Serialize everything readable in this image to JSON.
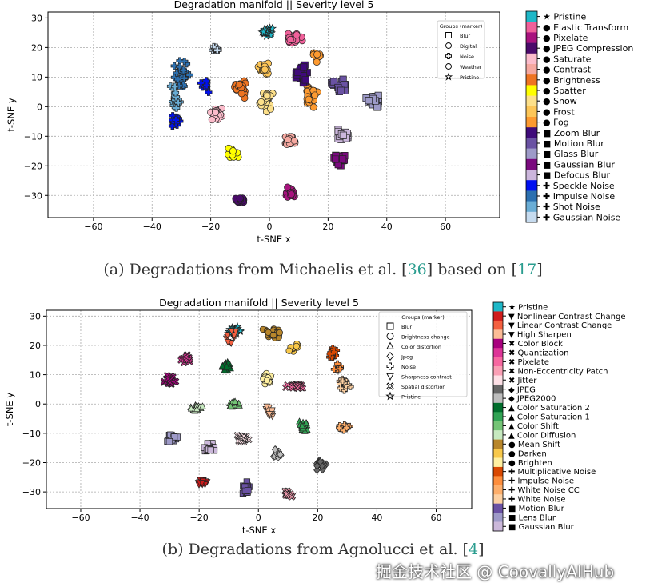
{
  "chart_data": [
    {
      "type": "scatter",
      "title": "Degradation manifold || Severity level 5",
      "xlabel": "t-SNE x",
      "ylabel": "t-SNE y",
      "xlim": [
        -75.5,
        78.5
      ],
      "ylim": [
        -37.5,
        32
      ],
      "xticks": [
        -60,
        -40,
        -20,
        0,
        20,
        40,
        60
      ],
      "yticks": [
        30,
        20,
        10,
        0,
        -10,
        -20,
        -30
      ],
      "grid": true,
      "legend": {
        "title": "Groups (marker)",
        "placement": "top-right",
        "entries": [
          {
            "label": "Blur",
            "marker": "square"
          },
          {
            "label": "Digital",
            "marker": "circle"
          },
          {
            "label": "Noise",
            "marker": "plus"
          },
          {
            "label": "Weather",
            "marker": "circle"
          },
          {
            "label": "Pristine",
            "marker": "star"
          }
        ]
      },
      "categories": [
        {
          "label": "Pristine",
          "marker": "star",
          "color": "#1fb8c8"
        },
        {
          "label": "Elastic Transform",
          "marker": "circle",
          "color": "#f0609a"
        },
        {
          "label": "Pixelate",
          "marker": "circle",
          "color": "#a8137e"
        },
        {
          "label": "JPEG Compression",
          "marker": "circle",
          "color": "#4a0a6a"
        },
        {
          "label": "Saturate",
          "marker": "circle",
          "color": "#fbbccb"
        },
        {
          "label": "Contrast",
          "marker": "circle",
          "color": "#f5a8a0"
        },
        {
          "label": "Brightness",
          "marker": "circle",
          "color": "#ee7422"
        },
        {
          "label": "Spatter",
          "marker": "circle",
          "color": "#ffff00"
        },
        {
          "label": "Snow",
          "marker": "circle",
          "color": "#fde08a"
        },
        {
          "label": "Frost",
          "marker": "circle",
          "color": "#fdc658"
        },
        {
          "label": "Fog",
          "marker": "circle",
          "color": "#fd9a30"
        },
        {
          "label": "Zoom Blur",
          "marker": "square",
          "color": "#3f0a7a"
        },
        {
          "label": "Motion Blur",
          "marker": "square",
          "color": "#6a52a3"
        },
        {
          "label": "Glass Blur",
          "marker": "square",
          "color": "#9d9ac8"
        },
        {
          "label": "Gaussian Blur",
          "marker": "square",
          "color": "#7a0a7e"
        },
        {
          "label": "Defocus Blur",
          "marker": "square",
          "color": "#cbb6dc"
        },
        {
          "label": "Speckle Noise",
          "marker": "plus",
          "color": "#0010f0"
        },
        {
          "label": "Impulse Noise",
          "marker": "plus",
          "color": "#2c70b0"
        },
        {
          "label": "Shot Noise",
          "marker": "plus",
          "color": "#6aadd5"
        },
        {
          "label": "Gaussian Noise",
          "marker": "plus",
          "color": "#c6dbef"
        }
      ],
      "clusters": [
        {
          "cat": 16,
          "x": -32,
          "y": -5,
          "sx": 3,
          "sy": 2.5,
          "n": 30
        },
        {
          "cat": 16,
          "x": -22,
          "y": 7,
          "sx": 2,
          "sy": 3,
          "n": 14
        },
        {
          "cat": 17,
          "x": -30,
          "y": 11,
          "sx": 3,
          "sy": 6,
          "n": 30
        },
        {
          "cat": 18,
          "x": -32,
          "y": 3,
          "sx": 2.5,
          "sy": 6,
          "n": 18
        },
        {
          "cat": 19,
          "x": -18,
          "y": 19,
          "sx": 2,
          "sy": 1.5,
          "n": 12
        },
        {
          "cat": 0,
          "x": -1,
          "y": 25.5,
          "sx": 2.5,
          "sy": 2,
          "n": 24
        },
        {
          "cat": 1,
          "x": 8,
          "y": 23.5,
          "sx": 4,
          "sy": 2,
          "n": 22
        },
        {
          "cat": 4,
          "x": -18,
          "y": -2.5,
          "sx": 2.5,
          "sy": 3,
          "n": 26
        },
        {
          "cat": 6,
          "x": -10,
          "y": 6.5,
          "sx": 3,
          "sy": 4,
          "n": 28
        },
        {
          "cat": 10,
          "x": 14,
          "y": 4,
          "sx": 3,
          "sy": 5,
          "n": 26
        },
        {
          "cat": 10,
          "x": 16,
          "y": 17,
          "sx": 2,
          "sy": 3,
          "n": 10
        },
        {
          "cat": 8,
          "x": -1,
          "y": 2,
          "sx": 2.5,
          "sy": 5,
          "n": 28
        },
        {
          "cat": 9,
          "x": -2,
          "y": 13,
          "sx": 2.5,
          "sy": 4,
          "n": 18
        },
        {
          "cat": 11,
          "x": 11,
          "y": 11,
          "sx": 3,
          "sy": 4,
          "n": 26
        },
        {
          "cat": 12,
          "x": 24.5,
          "y": 7,
          "sx": 4,
          "sy": 3,
          "n": 24
        },
        {
          "cat": 13,
          "x": 35.5,
          "y": 2,
          "sx": 3,
          "sy": 2.5,
          "n": 26
        },
        {
          "cat": 15,
          "x": 25,
          "y": -10,
          "sx": 3,
          "sy": 2.5,
          "n": 24
        },
        {
          "cat": 14,
          "x": 23.5,
          "y": -18,
          "sx": 3,
          "sy": 3,
          "n": 26
        },
        {
          "cat": 5,
          "x": 7,
          "y": -11.7,
          "sx": 3,
          "sy": 2,
          "n": 26
        },
        {
          "cat": 7,
          "x": -12.8,
          "y": -16,
          "sx": 2.5,
          "sy": 2.5,
          "n": 22
        },
        {
          "cat": 3,
          "x": -10,
          "y": -31.5,
          "sx": 2.5,
          "sy": 1.5,
          "n": 22
        },
        {
          "cat": 2,
          "x": 7,
          "y": -29,
          "sx": 2.5,
          "sy": 2.5,
          "n": 22
        }
      ]
    },
    {
      "type": "scatter",
      "title": "Degradation manifold || Severity level 5",
      "xlabel": "t-SNE x",
      "ylabel": "t-SNE y",
      "xlim": [
        -71.6,
        72
      ],
      "ylim": [
        -35.7,
        32
      ],
      "xticks": [
        -60,
        -40,
        -20,
        0,
        20,
        40,
        60
      ],
      "yticks": [
        30,
        20,
        10,
        0,
        -10,
        -20,
        -30
      ],
      "grid": true,
      "legend": {
        "title": "Groups (marker)",
        "placement": "top-right",
        "entries": [
          {
            "label": "Blur",
            "marker": "square"
          },
          {
            "label": "Brightness change",
            "marker": "circle"
          },
          {
            "label": "Color distortion",
            "marker": "tri"
          },
          {
            "label": "Jpeg",
            "marker": "diamond"
          },
          {
            "label": "Noise",
            "marker": "plus"
          },
          {
            "label": "Sharpness contrast",
            "marker": "itri"
          },
          {
            "label": "Spatial distortion",
            "marker": "x"
          },
          {
            "label": "Pristine",
            "marker": "star"
          }
        ]
      },
      "categories": [
        {
          "label": "Pristine",
          "marker": "star",
          "color": "#1fb8c8"
        },
        {
          "label": "Nonlinear Contrast Change",
          "marker": "itri",
          "color": "#d01c1c"
        },
        {
          "label": "Linear Contrast Change",
          "marker": "itri",
          "color": "#f46040"
        },
        {
          "label": "High Sharpen",
          "marker": "itri",
          "color": "#fcbc96"
        },
        {
          "label": "Color Block",
          "marker": "x",
          "color": "#a8007e"
        },
        {
          "label": "Quantization",
          "marker": "x",
          "color": "#dd3497"
        },
        {
          "label": "Pixelate",
          "marker": "x",
          "color": "#f768a1"
        },
        {
          "label": "Non-Eccentricity Patch",
          "marker": "x",
          "color": "#fa9fb5"
        },
        {
          "label": "Jitter",
          "marker": "x",
          "color": "#fde0e6"
        },
        {
          "label": "JPEG",
          "marker": "diamond",
          "color": "#666666"
        },
        {
          "label": "JPEG2000",
          "marker": "diamond",
          "color": "#bdbdbd"
        },
        {
          "label": "Color Saturation 2",
          "marker": "tri",
          "color": "#006d2c"
        },
        {
          "label": "Color Saturation 1",
          "marker": "tri",
          "color": "#31a354"
        },
        {
          "label": "Color Shift",
          "marker": "tri",
          "color": "#74c476"
        },
        {
          "label": "Color Diffusion",
          "marker": "tri",
          "color": "#c7e9c0"
        },
        {
          "label": "Mean Shift",
          "marker": "circle",
          "color": "#b8862b"
        },
        {
          "label": "Darken",
          "marker": "circle",
          "color": "#f8c84a"
        },
        {
          "label": "Brighten",
          "marker": "circle",
          "color": "#fff0a0"
        },
        {
          "label": "Multiplicative Noise",
          "marker": "plus",
          "color": "#d94801"
        },
        {
          "label": "Impulse Noise",
          "marker": "plus",
          "color": "#fd8d3c"
        },
        {
          "label": "White Noise CC",
          "marker": "plus",
          "color": "#fdae6b"
        },
        {
          "label": "White Noise",
          "marker": "plus",
          "color": "#fdd0a2"
        },
        {
          "label": "Motion Blur",
          "marker": "square",
          "color": "#6a51a3"
        },
        {
          "label": "Lens Blur",
          "marker": "square",
          "color": "#9e9ac8"
        },
        {
          "label": "Gaussian Blur",
          "marker": "square",
          "color": "#cbb8da"
        }
      ],
      "clusters": [
        {
          "cat": 0,
          "x": -8,
          "y": 25,
          "sx": 3,
          "sy": 2.5,
          "n": 30
        },
        {
          "cat": 2,
          "x": -9,
          "y": 22,
          "sx": 4,
          "sy": 4,
          "n": 10
        },
        {
          "cat": 15,
          "x": 5,
          "y": 24,
          "sx": 4,
          "sy": 2.5,
          "n": 28
        },
        {
          "cat": 16,
          "x": 12,
          "y": 19,
          "sx": 2,
          "sy": 2,
          "n": 12
        },
        {
          "cat": 18,
          "x": 25,
          "y": 17,
          "sx": 2,
          "sy": 3,
          "n": 18
        },
        {
          "cat": 19,
          "x": 27,
          "y": 12,
          "sx": 2,
          "sy": 2,
          "n": 14
        },
        {
          "cat": 21,
          "x": 29,
          "y": 7,
          "sx": 2.5,
          "sy": 3,
          "n": 22
        },
        {
          "cat": 20,
          "x": 29,
          "y": -8,
          "sx": 2.5,
          "sy": 1.2,
          "n": 18
        },
        {
          "cat": 5,
          "x": -24.6,
          "y": 15.5,
          "sx": 2,
          "sy": 2,
          "n": 22
        },
        {
          "cat": 4,
          "x": -30,
          "y": 8.2,
          "sx": 2.5,
          "sy": 2.5,
          "n": 26
        },
        {
          "cat": 11,
          "x": -10.8,
          "y": 13,
          "sx": 2,
          "sy": 2.5,
          "n": 22
        },
        {
          "cat": 17,
          "x": 2.7,
          "y": 9,
          "sx": 2.5,
          "sy": 2.5,
          "n": 22
        },
        {
          "cat": 6,
          "x": 12.7,
          "y": 6,
          "sx": 4,
          "sy": 1.5,
          "n": 26
        },
        {
          "cat": 14,
          "x": -21,
          "y": -1.4,
          "sx": 2.5,
          "sy": 1.5,
          "n": 24
        },
        {
          "cat": 13,
          "x": -8.4,
          "y": 0,
          "sx": 2.5,
          "sy": 1.8,
          "n": 24
        },
        {
          "cat": 3,
          "x": 3.8,
          "y": -2.7,
          "sx": 2,
          "sy": 2.5,
          "n": 20
        },
        {
          "cat": 12,
          "x": 15.4,
          "y": -7.6,
          "sx": 1.8,
          "sy": 2.5,
          "n": 22
        },
        {
          "cat": 23,
          "x": -29,
          "y": -11.7,
          "sx": 2.5,
          "sy": 2,
          "n": 22
        },
        {
          "cat": 24,
          "x": -16.5,
          "y": -15,
          "sx": 2.5,
          "sy": 2,
          "n": 22
        },
        {
          "cat": 8,
          "x": -5,
          "y": -11.7,
          "sx": 3,
          "sy": 2,
          "n": 24
        },
        {
          "cat": 10,
          "x": 6.5,
          "y": -17,
          "sx": 2,
          "sy": 2.5,
          "n": 20
        },
        {
          "cat": 9,
          "x": 20.8,
          "y": -21,
          "sx": 2.5,
          "sy": 2,
          "n": 20
        },
        {
          "cat": 1,
          "x": -19,
          "y": -26.7,
          "sx": 2,
          "sy": 1.5,
          "n": 20
        },
        {
          "cat": 22,
          "x": -4,
          "y": -28.6,
          "sx": 1.5,
          "sy": 2.5,
          "n": 20
        },
        {
          "cat": 7,
          "x": 10,
          "y": -30.8,
          "sx": 2.5,
          "sy": 1.5,
          "n": 20
        }
      ]
    }
  ],
  "captions": [
    {
      "prefix": "(a) Degradations from Michaelis et al. [",
      "cite1": "36",
      "middle": "] based on [",
      "cite2": "17",
      "suffix": "]"
    },
    {
      "prefix": "(b) Degradations from Agnolucci et al. [",
      "cite1": "4",
      "middle": "",
      "cite2": "",
      "suffix": "]"
    }
  ],
  "watermark": "掘金技术社区 @ CoovallyAIHub"
}
